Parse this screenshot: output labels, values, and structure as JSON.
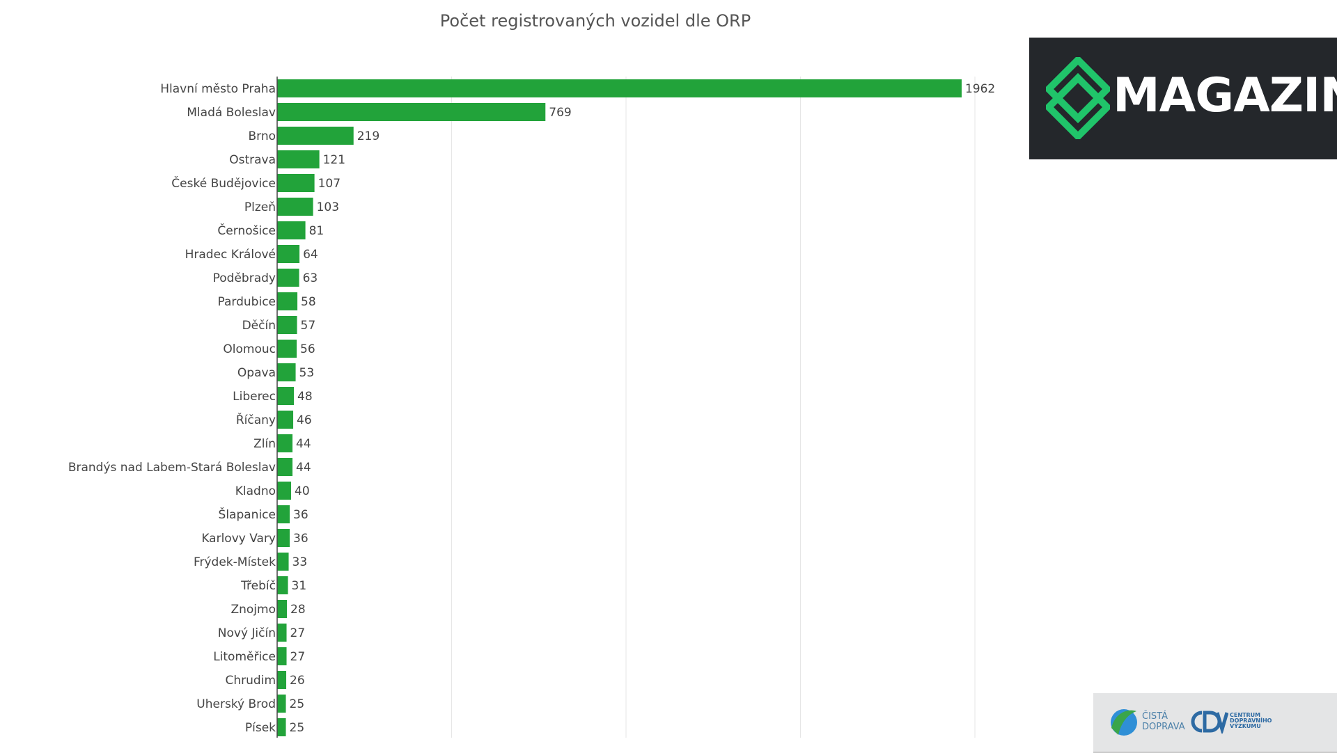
{
  "chart_data": {
    "type": "bar",
    "orientation": "horizontal",
    "title": "Počet registrovaných vozidel dle ORP",
    "xlabel": "",
    "ylabel": "",
    "xlim": [
      0,
      2000
    ],
    "gridlines_x": [
      500,
      1000,
      1500,
      2000
    ],
    "grid": true,
    "bar_color": "#22a33a",
    "categories": [
      "Hlavní město Praha",
      "Mladá Boleslav",
      "Brno",
      "Ostrava",
      "České Budějovice",
      "Plzeň",
      "Černošice",
      "Hradec Králové",
      "Poděbrady",
      "Pardubice",
      "Děčín",
      "Olomouc",
      "Opava",
      "Liberec",
      "Říčany",
      "Zlín",
      "Brandýs nad Labem-Stará Boleslav",
      "Kladno",
      "Šlapanice",
      "Karlovy Vary",
      "Frýdek-Místek",
      "Třebíč",
      "Znojmo",
      "Nový Jičín",
      "Litoměřice",
      "Chrudim",
      "Uherský Brod",
      "Písek"
    ],
    "values": [
      1962,
      769,
      219,
      121,
      107,
      103,
      81,
      64,
      63,
      58,
      57,
      56,
      53,
      48,
      46,
      44,
      44,
      40,
      36,
      36,
      33,
      31,
      28,
      27,
      27,
      26,
      25,
      25
    ]
  },
  "logos": {
    "magazin": {
      "text": "MAGAZIN",
      "icon": "cd-diamond-icon",
      "bg": "#24272b",
      "accent": "#20c46a"
    },
    "cista_doprava": {
      "line1": "ČISTÁ",
      "line2": "DOPRAVA"
    },
    "cdv": {
      "line1": "CENTRUM",
      "line2": "DOPRAVNÍHO",
      "line3": "VÝZKUMU"
    }
  }
}
